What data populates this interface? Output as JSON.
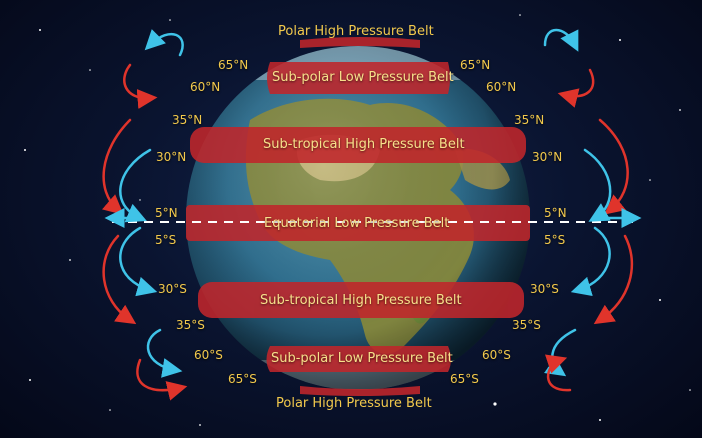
{
  "diagram": {
    "top_label": "Polar High Pressure Belt",
    "bottom_label": "Polar High Pressure Belt",
    "belts": [
      {
        "label": "Sub-polar Low Pressure Belt"
      },
      {
        "label": "Sub-tropical High Pressure Belt"
      },
      {
        "label": "Equatorial Low Pressure Belt"
      },
      {
        "label": "Sub-tropical High Pressure Belt"
      },
      {
        "label": "Sub-polar Low Pressure Belt"
      }
    ],
    "latitudes_left": [
      "65°N",
      "60°N",
      "35°N",
      "30°N",
      "5°N",
      "5°S",
      "30°S",
      "35°S",
      "60°S",
      "65°S"
    ],
    "latitudes_right": [
      "65°N",
      "60°N",
      "35°N",
      "30°N",
      "5°N",
      "5°S",
      "30°S",
      "35°S",
      "60°S",
      "65°S"
    ],
    "colors": {
      "pressure_belt": "#c0262b",
      "warm_arrow": "#e0342b",
      "cool_arrow": "#3fc3e8",
      "label": "#f2c94c",
      "ocean": "#2f6f8f",
      "land": "#8a8a3a"
    },
    "icons": {
      "globe": "earth-globe-icon",
      "circulation": "curved-arrow-icon"
    }
  }
}
